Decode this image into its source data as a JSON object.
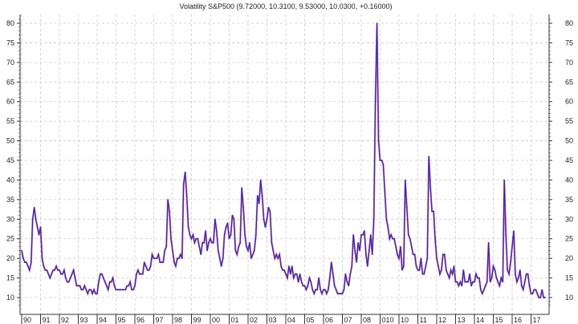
{
  "chart_data": {
    "type": "line",
    "title": "Volatility S&P500 (9.72000, 10.3100, 9.53000, 10.0300, +0.16000)",
    "xlabel": "",
    "ylabel": "",
    "x_tick_labels": [
      "90",
      "91",
      "92",
      "93",
      "94",
      "95",
      "96",
      "97",
      "98",
      "99",
      "00",
      "01",
      "02",
      "03",
      "04",
      "05",
      "06",
      "07",
      "08",
      "010",
      "10",
      "11",
      "12",
      "13",
      "14",
      "15",
      "16",
      "17"
    ],
    "y_ticks": [
      10,
      15,
      20,
      25,
      30,
      35,
      40,
      45,
      50,
      55,
      60,
      65,
      70,
      75,
      80
    ],
    "ylim": [
      7.5,
      82
    ],
    "xlim": [
      1990,
      2017.9
    ],
    "grid": true,
    "colors": {
      "line": "#2a2ab8",
      "accent": "#d0204a",
      "grid": "#c8c8c8"
    },
    "series": [
      {
        "start_year": 1990,
        "step": "month",
        "values": [
          22,
          20,
          19,
          19,
          18,
          17,
          19,
          30,
          33,
          30,
          28,
          26,
          28,
          20,
          18,
          17,
          17,
          16,
          15,
          16,
          17,
          17,
          18,
          17,
          17,
          16,
          16,
          17,
          15,
          14,
          14,
          15,
          16,
          17,
          15,
          13,
          13,
          13,
          12,
          12,
          13,
          12,
          11,
          12,
          12,
          11,
          12,
          11,
          11,
          14,
          16,
          16,
          15,
          14,
          13,
          12,
          14,
          14,
          15,
          13,
          12,
          12,
          12,
          12,
          12,
          12,
          12,
          13,
          13,
          14,
          12,
          12,
          13,
          16,
          17,
          16,
          16,
          16,
          19,
          18,
          17,
          17,
          18,
          21,
          20,
          20,
          20,
          21,
          19,
          19,
          19,
          22,
          23,
          35,
          32,
          25,
          22,
          19,
          18,
          20,
          20,
          21,
          20,
          39,
          42,
          36,
          28,
          26,
          25,
          26,
          24,
          25,
          25,
          23,
          21,
          24,
          24,
          27,
          22,
          24,
          25,
          24,
          24,
          30,
          27,
          22,
          20,
          18,
          20,
          26,
          28,
          29,
          25,
          26,
          31,
          30,
          22,
          21,
          23,
          24,
          38,
          33,
          26,
          23,
          22,
          24,
          20,
          21,
          22,
          26,
          36,
          34,
          40,
          36,
          30,
          28,
          30,
          33,
          32,
          24,
          22,
          20,
          21,
          20,
          21,
          18,
          17,
          17,
          16,
          15,
          18,
          16,
          18,
          15,
          16,
          16,
          14,
          16,
          14,
          13,
          13,
          12,
          13,
          15,
          14,
          12,
          11,
          12,
          12,
          15,
          12,
          11,
          12,
          12,
          11,
          12,
          15,
          19,
          16,
          13,
          12,
          11,
          11,
          11,
          11,
          12,
          16,
          14,
          13,
          16,
          18,
          26,
          22,
          19,
          24,
          22,
          26,
          26,
          27,
          21,
          18,
          22,
          26,
          21,
          30,
          60,
          80,
          50,
          45,
          45,
          44,
          37,
          30,
          28,
          25,
          26,
          25,
          25,
          23,
          21,
          20,
          23,
          17,
          18,
          40,
          33,
          26,
          25,
          23,
          21,
          21,
          18,
          17,
          17,
          20,
          16,
          16,
          18,
          20,
          46,
          38,
          32,
          32,
          25,
          20,
          18,
          16,
          17,
          21,
          21,
          17,
          16,
          15,
          17,
          16,
          18,
          14,
          14,
          13,
          14,
          13,
          17,
          14,
          14,
          14,
          16,
          13,
          14,
          14,
          16,
          15,
          15,
          12,
          11,
          12,
          13,
          14,
          24,
          14,
          15,
          18,
          17,
          15,
          14,
          13,
          15,
          14,
          40,
          26,
          17,
          16,
          19,
          23,
          27,
          16,
          14,
          15,
          17,
          13,
          12,
          14,
          16,
          16,
          13,
          11,
          11,
          12,
          12,
          11,
          10,
          10,
          12,
          10,
          10
        ]
      }
    ]
  }
}
